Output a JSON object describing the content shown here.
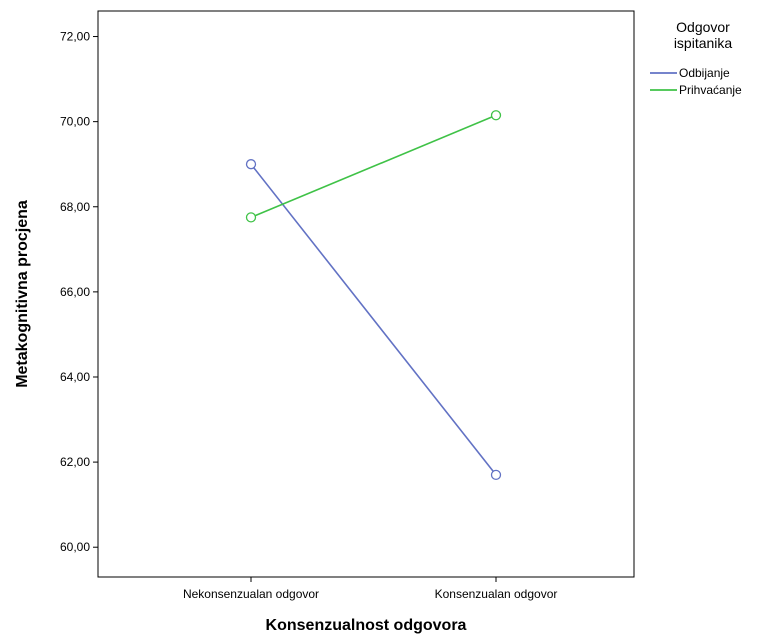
{
  "chart_data": {
    "type": "line",
    "xlabel": "Konsenzualnost odgovora",
    "ylabel": "Metakognitivna procjena",
    "categories": [
      "Nekonsenzualan odgovor",
      "Konsenzualan odgovor"
    ],
    "ylim": [
      59.3,
      72.6
    ],
    "y_ticks": [
      60,
      62,
      64,
      66,
      68,
      70,
      72
    ],
    "y_tick_labels": [
      "60,00",
      "62,00",
      "64,00",
      "66,00",
      "68,00",
      "70,00",
      "72,00"
    ],
    "grid": false,
    "legend": {
      "title_lines": [
        "Odgovor",
        "ispitanika"
      ],
      "placement": "right"
    },
    "series": [
      {
        "name": "Odbijanje",
        "color": "#6272c4",
        "values": [
          69.0,
          61.7
        ]
      },
      {
        "name": "Prihvaćanje",
        "color": "#3fc247",
        "values": [
          67.75,
          70.15
        ]
      }
    ]
  }
}
